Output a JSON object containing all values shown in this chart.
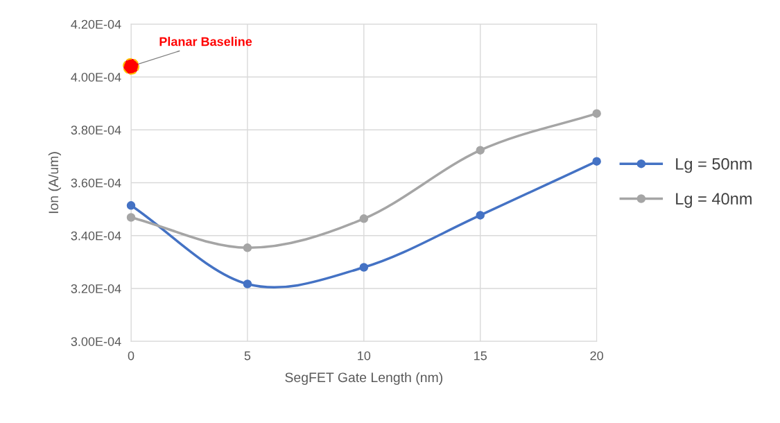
{
  "chart_data": {
    "type": "line",
    "xlabel": "SegFET Gate Length (nm)",
    "ylabel": "Ion (A/um)",
    "x": [
      0,
      5,
      10,
      15,
      20
    ],
    "series": [
      {
        "name": "Lg = 50nm",
        "color": "#4472c4",
        "values": [
          0.0003514,
          0.0003217,
          0.000328,
          0.0003477,
          0.0003681
        ]
      },
      {
        "name": "Lg = 40nm",
        "color": "#a5a5a5",
        "values": [
          0.0003469,
          0.0003354,
          0.0003464,
          0.0003723,
          0.0003862
        ]
      },
      {
        "name": "Planar Baseline",
        "type": "scatter",
        "color": "#ff0000",
        "values": [
          0.000404,
          null,
          null,
          null,
          null
        ]
      }
    ],
    "xlim": [
      0,
      20
    ],
    "xticks": [
      0,
      5,
      10,
      15,
      20
    ],
    "ylim": [
      0.0003,
      0.00042
    ],
    "yticks": [
      {
        "value": 0.0003,
        "label": "3.00E-04"
      },
      {
        "value": 0.00032,
        "label": "3.20E-04"
      },
      {
        "value": 0.00034,
        "label": "3.40E-04"
      },
      {
        "value": 0.00036,
        "label": "3.60E-04"
      },
      {
        "value": 0.00038,
        "label": "3.80E-04"
      },
      {
        "value": 0.0004,
        "label": "4.00E-04"
      },
      {
        "value": 0.00042,
        "label": "4.20E-04"
      }
    ],
    "grid": true,
    "legend": "right",
    "marker": "circle",
    "line_style": "solid"
  }
}
